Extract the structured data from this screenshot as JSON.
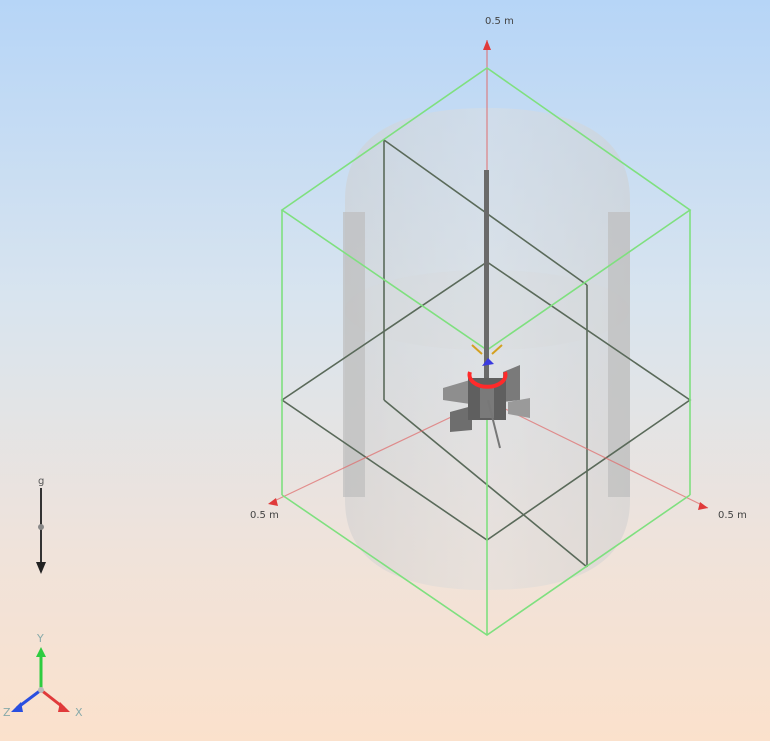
{
  "viewport": {
    "axis_labels": {
      "top": "0.5 m",
      "left": "0.5 m",
      "right": "0.5 m"
    },
    "gravity_indicator": {
      "label": "g",
      "icon": "gravity-arrow-icon"
    },
    "triad": {
      "x": "X",
      "y": "Y",
      "z": "Z"
    },
    "colors": {
      "bbox": "#7fe07f",
      "axis_x": "#e03a3a",
      "axis_y": "#2ecc40",
      "axis_z": "#2a4fe0",
      "tank": "#c9c9c9"
    }
  }
}
